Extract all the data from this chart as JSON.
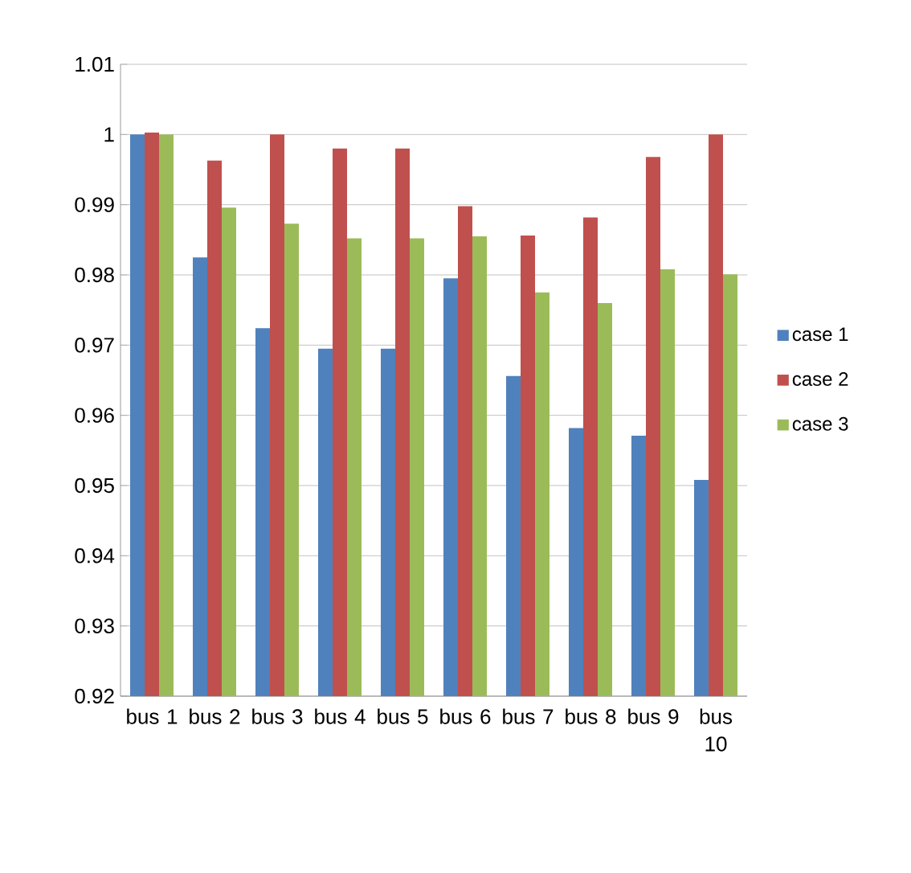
{
  "chart_data": {
    "type": "bar",
    "categories": [
      "bus 1",
      "bus 2",
      "bus 3",
      "bus 4",
      "bus 5",
      "bus 6",
      "bus 7",
      "bus 8",
      "bus 9",
      "bus 10"
    ],
    "series": [
      {
        "name": "case 1",
        "color": "#4f81bd",
        "values": [
          1.0,
          0.9825,
          0.9724,
          0.9695,
          0.9695,
          0.9795,
          0.9656,
          0.9582,
          0.9571,
          0.9508
        ]
      },
      {
        "name": "case 2",
        "color": "#c0504d",
        "values": [
          1.0003,
          0.9963,
          1.0,
          0.998,
          0.998,
          0.9898,
          0.9856,
          0.9882,
          0.9968,
          1.0
        ]
      },
      {
        "name": "case 3",
        "color": "#9bbb59",
        "values": [
          1.0,
          0.9896,
          0.9873,
          0.9852,
          0.9852,
          0.9855,
          0.9775,
          0.976,
          0.9808,
          0.9801
        ]
      }
    ],
    "ylim": [
      0.92,
      1.01
    ],
    "yticks": [
      0.92,
      0.93,
      0.94,
      0.95,
      0.96,
      0.97,
      0.98,
      0.99,
      1,
      1.01
    ],
    "grid": "y",
    "legend": "right"
  }
}
